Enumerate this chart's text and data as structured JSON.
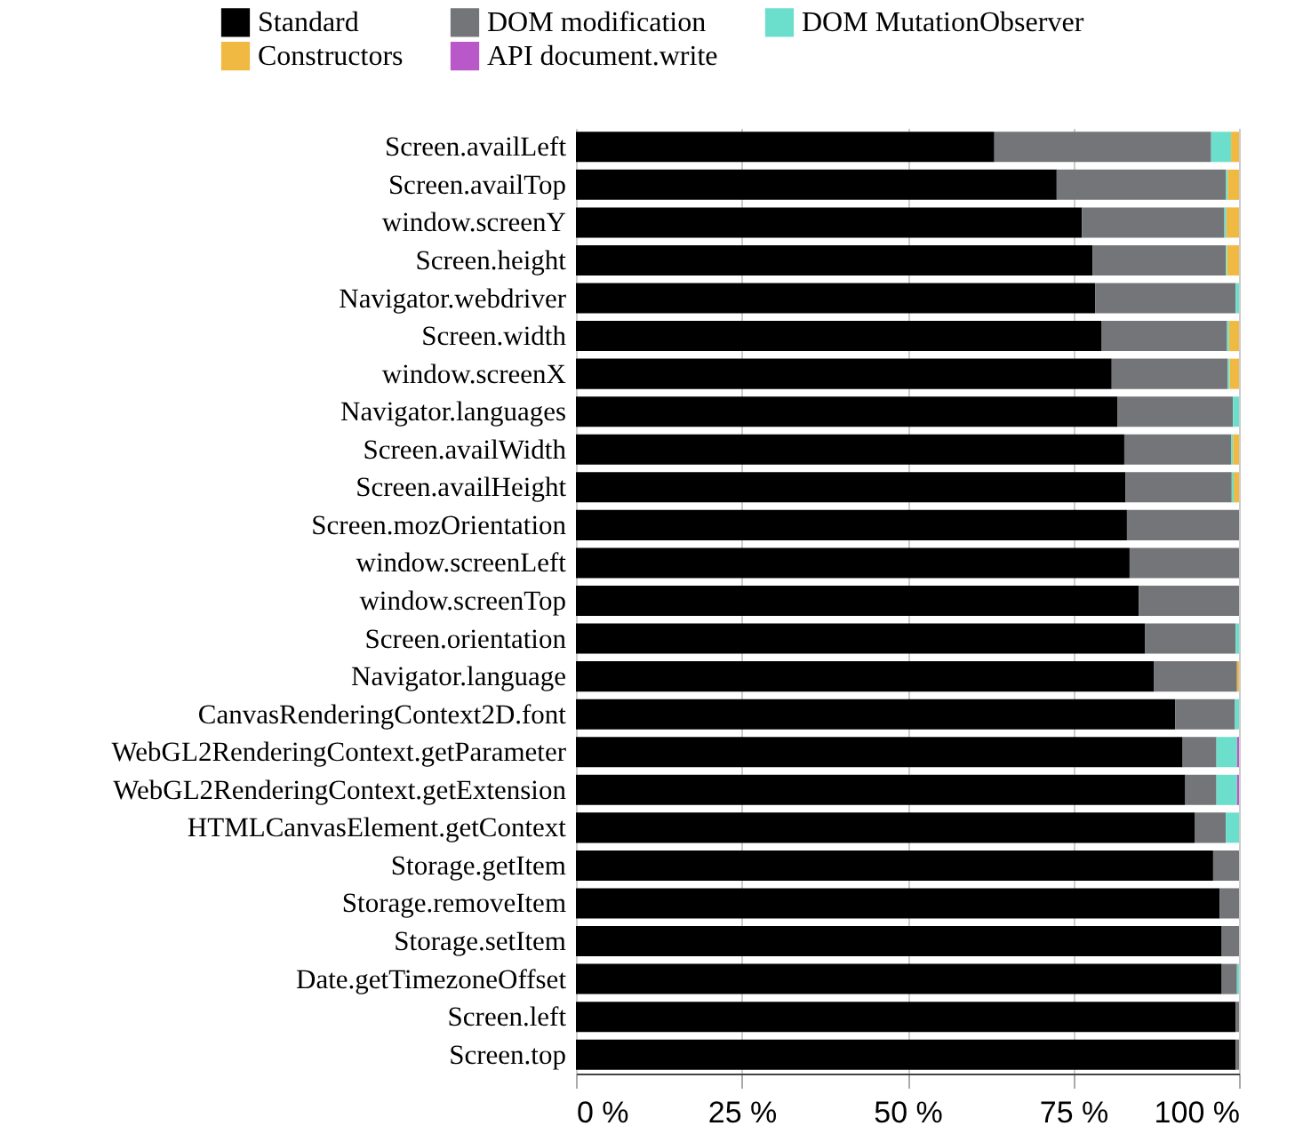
{
  "chart_data": {
    "type": "bar",
    "orientation": "horizontal",
    "stacked": true,
    "categories": [
      "Screen.availLeft",
      "Screen.availTop",
      "window.screenY",
      "Screen.height",
      "Navigator.webdriver",
      "Screen.width",
      "window.screenX",
      "Navigator.languages",
      "Screen.availWidth",
      "Screen.availHeight",
      "Screen.mozOrientation",
      "window.screenLeft",
      "window.screenTop",
      "Screen.orientation",
      "Navigator.language",
      "CanvasRenderingContext2D.font",
      "WebGL2RenderingContext.getParameter",
      "WebGL2RenderingContext.getExtension",
      "HTMLCanvasElement.getContext",
      "Storage.getItem",
      "Storage.removeItem",
      "Storage.setItem",
      "Date.getTimezoneOffset",
      "Screen.left",
      "Screen.top"
    ],
    "series": [
      {
        "name": "Standard",
        "color": "#000000",
        "values": [
          63.1,
          72.5,
          76.3,
          77.9,
          78.3,
          79.3,
          80.8,
          81.7,
          82.7,
          82.9,
          83.1,
          83.5,
          84.9,
          85.8,
          87.2,
          90.4,
          91.5,
          91.9,
          93.3,
          96.1,
          97.1,
          97.4,
          97.4,
          99.5,
          99.5
        ]
      },
      {
        "name": "DOM modification",
        "color": "#737578",
        "values": [
          32.7,
          25.5,
          21.5,
          20.1,
          21.2,
          18.9,
          17.5,
          17.4,
          16.1,
          16.0,
          16.9,
          16.5,
          15.1,
          13.7,
          12.5,
          9.0,
          5.1,
          4.7,
          4.7,
          3.9,
          2.9,
          2.6,
          2.3,
          0.5,
          0.5
        ]
      },
      {
        "name": "DOM MutationObserver",
        "color": "#6cdfcc",
        "values": [
          3.0,
          0.3,
          0.3,
          0.2,
          0.5,
          0.3,
          0.3,
          0.9,
          0.3,
          0.3,
          null,
          null,
          null,
          0.5,
          null,
          0.6,
          3.1,
          3.1,
          2.0,
          null,
          null,
          null,
          0.3,
          null,
          null
        ]
      },
      {
        "name": "Constructors",
        "color": "#f0b942",
        "values": [
          1.2,
          1.7,
          1.9,
          1.8,
          null,
          1.5,
          1.4,
          null,
          0.9,
          0.8,
          null,
          null,
          null,
          null,
          0.3,
          null,
          null,
          null,
          null,
          null,
          null,
          null,
          null,
          null,
          null
        ]
      },
      {
        "name": "API document.write",
        "color": "#b958c8",
        "values": [
          null,
          null,
          null,
          null,
          null,
          null,
          null,
          null,
          null,
          null,
          null,
          null,
          null,
          null,
          null,
          null,
          0.3,
          0.3,
          null,
          null,
          null,
          null,
          null,
          null,
          null
        ]
      }
    ],
    "xlim": [
      0,
      100
    ],
    "xticks": [
      {
        "value": 0,
        "label": "0 %"
      },
      {
        "value": 25,
        "label": "25 %"
      },
      {
        "value": 50,
        "label": "50 %"
      },
      {
        "value": 75,
        "label": "75 %"
      },
      {
        "value": 100,
        "label": "100 %"
      }
    ],
    "grid": "x",
    "legend": "top"
  }
}
